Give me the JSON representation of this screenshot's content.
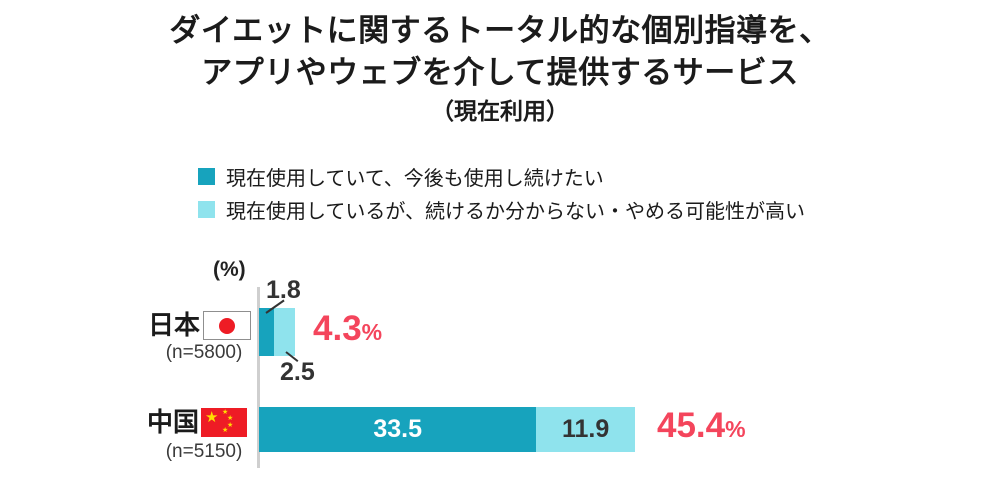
{
  "title": {
    "line1": "ダイエットに関するトータル的な個別指導を、",
    "line2": "アプリやウェブを介して提供するサービス",
    "line3": "（現在利用）"
  },
  "axis_unit": "(%)",
  "chart_data": {
    "type": "bar",
    "orientation": "horizontal",
    "stacked": true,
    "title": "ダイエットに関するトータル的な個別指導を、アプリやウェブを介して提供するサービス（現在利用）",
    "categories": [
      "日本",
      "中国"
    ],
    "sample_sizes": [
      "(n=5800)",
      "(n=5150)"
    ],
    "series": [
      {
        "name": "現在使用していて、今後も使用し続けたい",
        "color": "#17a3bd",
        "values": [
          1.8,
          33.5
        ]
      },
      {
        "name": "現在使用しているが、続けるか分からない・やめる可能性が高い",
        "color": "#8fe3ed",
        "values": [
          2.5,
          11.9
        ]
      }
    ],
    "totals": [
      "4.3",
      "45.4"
    ],
    "total_suffix": "%",
    "xlim": [
      0,
      50
    ],
    "grid": false,
    "legend_position": "top"
  },
  "colors": {
    "total_red": "#f4455c",
    "axis_gray": "#cfcfcf",
    "flag_red": "#ee1c25",
    "flag_star_yellow": "#ffde00"
  }
}
